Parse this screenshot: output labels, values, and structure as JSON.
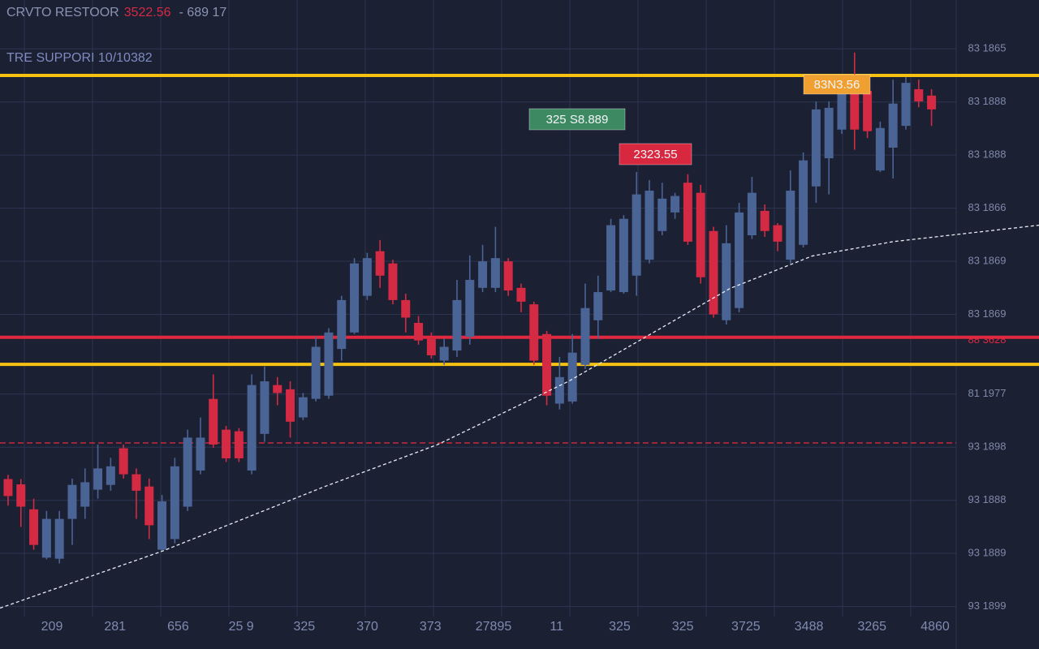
{
  "chart_data": {
    "type": "candlestick",
    "title": "CRVTO RESTOOR",
    "title_price": "3522.56",
    "title_change": "- 689 17",
    "support_label": "TRE SUPPORI 10/10382",
    "background": "#1b2033",
    "grid": true,
    "up_color": "#4a6496",
    "down_color": "#d42a43",
    "xlim": [
      -0.63,
      80.38
    ],
    "ylim": [
      -0.8,
      11.42
    ],
    "yticks": [
      {
        "value": 10.5,
        "label": "83 1865"
      },
      {
        "value": 9.5,
        "label": "83 1888"
      },
      {
        "value": 8.5,
        "label": "83 1888"
      },
      {
        "value": 7.5,
        "label": "83 1866"
      },
      {
        "value": 6.5,
        "label": "83 1869"
      },
      {
        "value": 5.5,
        "label": "83 1869"
      },
      {
        "value": 4,
        "label": "81 1977"
      },
      {
        "value": 3,
        "label": "93 1898"
      },
      {
        "value": 2,
        "label": "93 1888"
      },
      {
        "value": 1,
        "label": "93 1889"
      },
      {
        "value": 0,
        "label": "93 1899"
      }
    ],
    "xtick_labels": [
      "209",
      "281",
      "656",
      "25 9",
      "325",
      "370",
      "373",
      "27895",
      "11",
      "325",
      "325",
      "3725",
      "3488",
      "3265",
      "4860"
    ],
    "candles": {
      "open": [
        2.4,
        2.3,
        1.83,
        0.92,
        0.9,
        1.65,
        1.88,
        2.2,
        2.29,
        2.98,
        2.49,
        2.26,
        1.07,
        1.27,
        1.88,
        2.56,
        3.91,
        3.33,
        3.3,
        2.56,
        3.25,
        4.17,
        4.09,
        3.56,
        3.91,
        3.97,
        4.85,
        5.16,
        5.85,
        6.69,
        6.46,
        5.77,
        5.34,
        5.04,
        4.63,
        4.82,
        5.08,
        6.0,
        6.0,
        6.5,
        6.0,
        5.69,
        5.13,
        3.82,
        3.86,
        4.55,
        5.39,
        5.95,
        5.92,
        6.23,
        6.53,
        7.07,
        7.42,
        7.98,
        7.79,
        7.07,
        5.39,
        5.62,
        6.99,
        7.45,
        7.18,
        6.53,
        6.81,
        7.91,
        8.44,
        8.98,
        9.77,
        9.71,
        8.21,
        8.64,
        9.05,
        9.74,
        9.62
      ],
      "high": [
        2.48,
        2.4,
        2.03,
        1.8,
        1.8,
        2.41,
        2.6,
        3.05,
        2.8,
        3.05,
        2.6,
        2.41,
        2.1,
        2.8,
        3.33,
        3.56,
        4.37,
        3.4,
        3.36,
        4.37,
        4.52,
        4.32,
        4.24,
        4.02,
        5.08,
        5.24,
        5.85,
        6.56,
        6.66,
        6.9,
        6.53,
        5.89,
        5.47,
        5.16,
        5.04,
        6.15,
        6.61,
        6.81,
        7.15,
        6.56,
        6.08,
        5.74,
        5.19,
        4.7,
        5.13,
        6.08,
        6.23,
        7.3,
        7.37,
        8.18,
        8.03,
        7.98,
        7.79,
        8.14,
        7.94,
        7.15,
        7.18,
        7.6,
        8.09,
        7.57,
        7.22,
        8.21,
        8.55,
        9.51,
        9.51,
        9.97,
        10.43,
        9.89,
        9.13,
        9.92,
        9.97,
        9.92,
        9.74
      ],
      "low": [
        1.9,
        1.5,
        1.07,
        0.89,
        0.81,
        1.16,
        1.65,
        2.03,
        2.18,
        2.41,
        1.65,
        1.27,
        1.04,
        1.19,
        1.8,
        2.49,
        2.99,
        2.72,
        2.72,
        2.49,
        3.1,
        3.79,
        3.18,
        3.51,
        3.86,
        3.91,
        4.63,
        5.13,
        5.77,
        6.0,
        5.69,
        5.16,
        4.93,
        4.67,
        4.55,
        4.7,
        4.93,
        5.92,
        5.92,
        5.85,
        5.54,
        4.55,
        3.79,
        3.71,
        3.82,
        4.47,
        5.04,
        5.92,
        5.89,
        5.85,
        6.46,
        6.99,
        7.3,
        6.81,
        6.08,
        5.44,
        5.31,
        5.54,
        6.92,
        6.96,
        6.69,
        6.46,
        6.76,
        7.6,
        7.76,
        8.9,
        8.6,
        8.82,
        8.18,
        8.06,
        8.98,
        9.4,
        9.05
      ],
      "close": [
        2.08,
        1.88,
        1.16,
        1.65,
        1.65,
        2.29,
        2.34,
        2.6,
        2.64,
        2.49,
        2.18,
        1.53,
        1.98,
        2.64,
        3.18,
        3.18,
        3.05,
        2.79,
        2.79,
        4.17,
        4.24,
        4.02,
        3.48,
        3.94,
        4.89,
        5.16,
        5.77,
        6.46,
        6.56,
        6.23,
        5.77,
        5.44,
        5.01,
        4.73,
        4.89,
        5.77,
        6.15,
        6.5,
        6.56,
        5.95,
        5.74,
        4.63,
        3.97,
        4.32,
        4.78,
        5.62,
        5.92,
        7.18,
        7.3,
        7.76,
        7.83,
        7.68,
        7.73,
        6.87,
        6.2,
        5.5,
        6.84,
        7.42,
        7.79,
        7.07,
        6.87,
        7.83,
        8.4,
        9.36,
        9.39,
        9.89,
        8.98,
        8.95,
        9.01,
        9.47,
        9.86,
        9.51,
        9.36
      ]
    },
    "ma": {
      "x": [
        -0.63,
        12.0,
        24.7,
        33.5,
        43.7,
        51.9,
        56.3,
        62.7,
        69.0,
        80.4
      ],
      "values": [
        -0.03,
        1.04,
        2.26,
        3.05,
        4.24,
        5.38,
        5.99,
        6.6,
        6.87,
        7.18
      ],
      "color": "#e8ecf4"
    },
    "levels": [
      {
        "value": 10.0,
        "color": "#f5c211",
        "style": "solid"
      },
      {
        "value": 4.56,
        "color": "#f5c211",
        "style": "solid"
      },
      {
        "value": 5.07,
        "color": "#e0283f",
        "style": "solid",
        "label": "88 3628"
      },
      {
        "value": 3.08,
        "color": "#c8283f",
        "style": "dashed"
      }
    ],
    "annotations": [
      {
        "text": "325 S8.889",
        "color": "#3d8a62"
      },
      {
        "text": "2323.55",
        "color": "#d8283f"
      },
      {
        "text": "83N3.56",
        "color": "#f0a030"
      }
    ]
  }
}
